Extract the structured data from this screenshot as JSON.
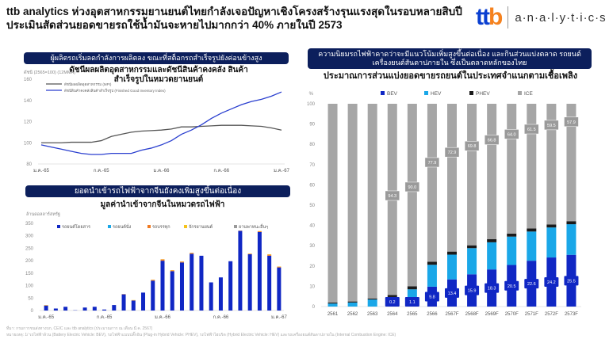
{
  "header": {
    "title_line1": "ttb analytics ห่วงอุตสาหกรรมยานยนต์ไทยกำลังเจอปัญหาเชิงโครงสร้างรุนแรงสุดในรอบหลายสิบปี",
    "title_line2": "ประเมินสัดส่วนยอดขายรถใช้น้ำมันจะหายไปมากกว่า 40% ภายในปี 2573",
    "logo_text": "analytics",
    "logo_mark": "ttb"
  },
  "panel1": {
    "banner": "ผู้ผลิตรถเริ่มลดกำลังการผลิตลง ขณะที่สต็อกรถสำเร็จรูปยังค่อนข้างสูง"
  },
  "panel2": {
    "banner": "ยอดนำเข้ารถไฟฟ้าจากจีนยังคงเพิ่มสูงขึ้นต่อเนื่อง"
  },
  "panel3": {
    "banner": "ความนิยมรถไฟฟ้าคาดว่าจะมีแนวโน้มเพิ่มสูงขึ้นต่อเนื่อง และกินส่วนแบ่งตลาด รถยนต์เครื่องยนต์สันดาปภายใน ซึ่งเป็นตลาดหลักของไทย"
  },
  "footer": {
    "source": "ที่มา: กรมการขนส่งทางบก, CEIC และ ttb analytics (ประมาณการ ณ เดือน มี.ค. 2567)",
    "note": "หมายเหตุ: 1/ รถไฟฟ้าล้วน (Battery Electric Vehicle: BEV), รถไฟฟ้าแบบปลั๊กอิน (Plug-in Hybrid Vehicle: PHEV), รถไฟฟ้าไฮบริด (Hybrid Electric Vehicle: HEV) และรถเครื่องยนต์สันดาปภายใน (Internal Combustion Engine: ICE)"
  },
  "chart_data": [
    {
      "type": "line",
      "title": "ดัชนีผลผลิตอุตสาหกรรมและดัชนีสินค้าคงคลัง สินค้าสำเร็จรูปในหมวดยานยนต์",
      "ylabel": "ดัชนี (2565=100) (12MMA)",
      "ylim": [
        80,
        160
      ],
      "yticks": [
        "80",
        "100",
        "120",
        "140",
        "160"
      ],
      "xtick_labels": [
        "ม.ค.-65",
        "ก.ค.-65",
        "ม.ค.-66",
        "ก.ค.-66",
        "ม.ค.-67"
      ],
      "legend": "top-left",
      "grid": false,
      "series": [
        {
          "name": "ดัชนีผลผลิตอุตสาหกรรม (MPI)",
          "color": "#555555",
          "values": [
            100,
            100,
            100,
            100.5,
            100.5,
            100.5,
            102,
            106,
            108,
            110,
            111,
            111.5,
            112,
            113,
            115,
            115,
            115.5,
            116,
            116.5,
            116.5,
            116.5,
            116,
            115.5,
            114,
            112
          ]
        },
        {
          "name": "ดัชนีสินค้าคงคลังสินค้าสำเร็จรูป (Finished Good Inventory Index)",
          "color": "#2a3fcf",
          "values": [
            98,
            96,
            94,
            92,
            90,
            89,
            89,
            90,
            90,
            90,
            93,
            95,
            98,
            102,
            108,
            112,
            117,
            123,
            128,
            132,
            136,
            139,
            141,
            144,
            148
          ]
        }
      ]
    },
    {
      "type": "bar",
      "stacked": true,
      "title": "มูลค่านำเข้าจากจีนในหมวดรถไฟฟ้า",
      "ylabel": "ล้านดอลลาร์สหรัฐ",
      "ylim": [
        0,
        350
      ],
      "yticks": [
        "0",
        "50",
        "100",
        "150",
        "200",
        "250",
        "300",
        "350"
      ],
      "xtick_labels": [
        "ม.ค.-65",
        "ก.ค.-65",
        "ม.ค.-66",
        "ก.ค.-66",
        "ม.ค.-67"
      ],
      "legend": "top",
      "series": [
        {
          "name": "รถยนต์โดยสาร",
          "color": "#1027c4",
          "values": [
            20,
            8,
            15,
            1,
            12,
            15,
            4,
            22,
            65,
            40,
            72,
            120,
            200,
            158,
            193,
            228,
            220,
            113,
            133,
            198,
            320,
            226,
            315,
            220,
            173
          ]
        },
        {
          "name": "รถยนต์นั่ง",
          "color": "#1aa7e8",
          "values": [
            0,
            0,
            0,
            0,
            0,
            0,
            0,
            0,
            0,
            0,
            0,
            0,
            0,
            0,
            0,
            0,
            0,
            0,
            0,
            0,
            0,
            0,
            0,
            0,
            0
          ]
        },
        {
          "name": "รถบรรทุก",
          "color": "#f07a22",
          "values": [
            1,
            0,
            0,
            0,
            0,
            0,
            0,
            0,
            1,
            1,
            0,
            3,
            5,
            3,
            3,
            3,
            0,
            0,
            0,
            0,
            1,
            2,
            3,
            4,
            3
          ]
        },
        {
          "name": "จักรยานยนต์",
          "color": "#f5c21b",
          "values": [
            1,
            0,
            0,
            0,
            0,
            0,
            0,
            0,
            0,
            1,
            0,
            1,
            1,
            1,
            1,
            1,
            0,
            0,
            0,
            0,
            0,
            1,
            1,
            2,
            1
          ]
        },
        {
          "name": "ยานพาหนะอื่นๆ",
          "color": "#999999",
          "values": [
            0,
            0,
            0,
            0,
            0,
            0,
            0,
            0,
            0,
            0,
            0,
            0,
            0,
            0,
            0,
            0,
            0,
            0,
            0,
            0,
            0,
            0,
            0,
            0,
            0
          ]
        }
      ]
    },
    {
      "type": "bar",
      "stacked": true,
      "title": "ประมาณการส่วนแบ่งยอดขายรถยนต์ในประเทศจำแนกตามเชื้อเพลิง",
      "ylabel": "%",
      "ylim": [
        0,
        100
      ],
      "yticks": [
        "0",
        "10",
        "20",
        "30",
        "40",
        "50",
        "60",
        "70",
        "80",
        "90",
        "100"
      ],
      "legend": "top",
      "categories": [
        "2561",
        "2562",
        "2563",
        "2564",
        "2565",
        "2566",
        "2567F",
        "2568F",
        "2569F",
        "2570F",
        "2571F",
        "2572F",
        "2573F"
      ],
      "series": [
        {
          "name": "BEV",
          "color": "#1027c4",
          "values": [
            0,
            0,
            0,
            0.2,
            1.1,
            9.8,
            13.4,
            15.9,
            18.3,
            20.5,
            22.6,
            24.2,
            25.5
          ],
          "labels": [
            "",
            "",
            "",
            "0.2",
            "1.1",
            "9.8",
            "13.4",
            "15.9",
            "18.3",
            "20.5",
            "22.6",
            "24.2",
            "25.5"
          ]
        },
        {
          "name": "HEV",
          "color": "#1aa7e8",
          "values": [
            1.5,
            2,
            3.5,
            4.5,
            7.4,
            10.8,
            12.2,
            12.9,
            13.4,
            14.0,
            14.4,
            14.8,
            15.1
          ]
        },
        {
          "name": "PHEV",
          "color": "#1a1a1a",
          "values": [
            0.5,
            0.5,
            0.5,
            1.0,
            1.5,
            1.5,
            1.5,
            1.4,
            1.5,
            1.5,
            1.5,
            1.5,
            1.5
          ]
        },
        {
          "name": "ICE",
          "color": "#a6a6a6",
          "values": [
            98,
            97.5,
            96,
            94.3,
            90.0,
            77.9,
            72.9,
            69.8,
            66.8,
            64.0,
            61.5,
            59.5,
            57.9
          ],
          "labels": [
            "",
            "",
            "",
            "94.3",
            "90.0",
            "77.9",
            "72.9",
            "69.8",
            "66.8",
            "64.0",
            "61.5",
            "59.5",
            "57.9"
          ]
        }
      ]
    }
  ]
}
